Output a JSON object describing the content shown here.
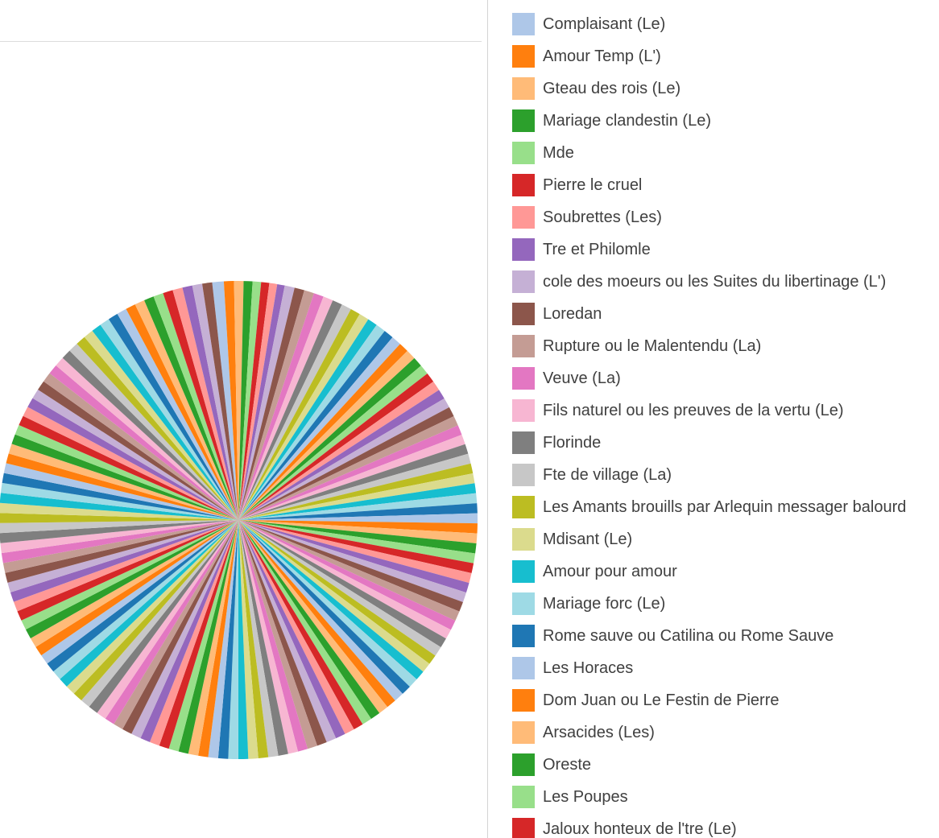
{
  "chart_data": {
    "type": "pie",
    "legend_position": "right",
    "palette": [
      "#aec7e8",
      "#ff7f0e",
      "#ffbb78",
      "#2ca02c",
      "#98df8a",
      "#d62728",
      "#ff9896",
      "#9467bd",
      "#c5b0d5",
      "#8c564b",
      "#c49c94",
      "#e377c2",
      "#f7b6d2",
      "#7f7f7f",
      "#c7c7c7",
      "#bcbd22",
      "#dbdb8d",
      "#17becf",
      "#9edae5",
      "#1f77b4"
    ],
    "categories": [
      "Complaisant (Le)",
      "Amour  Temp (L')",
      "Gteau des rois (Le)",
      "Mariage clandestin (Le)",
      "Mde",
      "Pierre le cruel",
      "Soubrettes (Les)",
      "Tre et Philomle",
      "cole des moeurs ou les Suites du libertinage (L')",
      "Loredan",
      "Rupture ou le Malentendu (La)",
      "Veuve (La)",
      "Fils naturel ou les preuves de la vertu (Le)",
      "Florinde",
      "Fte de village (La)",
      "Les Amants brouills par Arlequin messager balourd",
      "Mdisant (Le)",
      "Amour pour amour",
      "Mariage forc (Le)",
      "Rome sauve ou Catilina ou Rome Sauve",
      "Les Horaces",
      "Dom Juan ou Le Festin de Pierre",
      "Arsacides (Les)",
      "Oreste",
      "Les Poupes",
      "Jaloux honteux de l'tre (Le)"
    ]
  }
}
